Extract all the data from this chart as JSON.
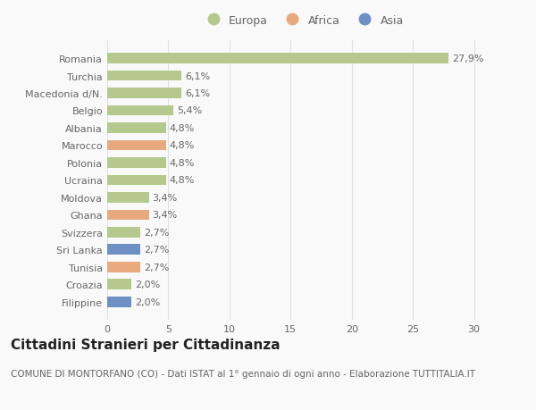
{
  "countries": [
    "Romania",
    "Turchia",
    "Macedonia d/N.",
    "Belgio",
    "Albania",
    "Marocco",
    "Polonia",
    "Ucraina",
    "Moldova",
    "Ghana",
    "Svizzera",
    "Sri Lanka",
    "Tunisia",
    "Croazia",
    "Filippine"
  ],
  "values": [
    27.9,
    6.1,
    6.1,
    5.4,
    4.8,
    4.8,
    4.8,
    4.8,
    3.4,
    3.4,
    2.7,
    2.7,
    2.7,
    2.0,
    2.0
  ],
  "continents": [
    "Europa",
    "Europa",
    "Europa",
    "Europa",
    "Europa",
    "Africa",
    "Europa",
    "Europa",
    "Europa",
    "Africa",
    "Europa",
    "Asia",
    "Africa",
    "Europa",
    "Asia"
  ],
  "labels": [
    "27,9%",
    "6,1%",
    "6,1%",
    "5,4%",
    "4,8%",
    "4,8%",
    "4,8%",
    "4,8%",
    "3,4%",
    "3,4%",
    "2,7%",
    "2,7%",
    "2,7%",
    "2,0%",
    "2,0%"
  ],
  "continent_colors": {
    "Europa": "#b5c98e",
    "Africa": "#e8a97e",
    "Asia": "#6d8fc4"
  },
  "legend_items": [
    "Europa",
    "Africa",
    "Asia"
  ],
  "xlim": [
    0,
    32
  ],
  "xticks": [
    0,
    5,
    10,
    15,
    20,
    25,
    30
  ],
  "title": "Cittadini Stranieri per Cittadinanza",
  "subtitle": "COMUNE DI MONTORFANO (CO) - Dati ISTAT al 1° gennaio di ogni anno - Elaborazione TUTTITALIA.IT",
  "background_color": "#f9f9f9",
  "grid_color": "#e0e0e0",
  "bar_height": 0.6,
  "label_fontsize": 8,
  "tick_fontsize": 8,
  "title_fontsize": 11,
  "subtitle_fontsize": 7.5,
  "legend_fontsize": 9
}
